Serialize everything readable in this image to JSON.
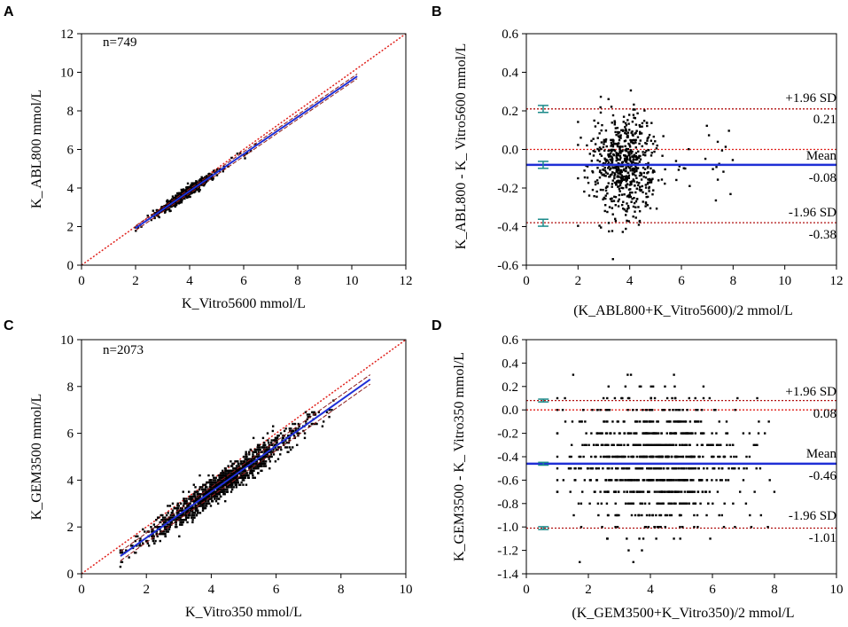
{
  "chart_data": [
    {
      "panel": "A",
      "type": "scatter",
      "xlabel": "K_Vitro5600 mmol/L",
      "ylabel": "K_ ABL800 mmol/L",
      "xlim": [
        0,
        12
      ],
      "ylim": [
        0,
        12
      ],
      "xticks": [
        "0",
        "2",
        "4",
        "6",
        "8",
        "10",
        "12"
      ],
      "yticks": [
        "0",
        "2",
        "4",
        "6",
        "8",
        "10",
        "12"
      ],
      "annotation": "n=749",
      "points_summary": {
        "n": 749,
        "x_range": [
          2.0,
          6.5
        ],
        "x_center": 3.8
      },
      "identity_line": {
        "from": [
          0,
          0
        ],
        "to": [
          12,
          12
        ],
        "color": "#e0201b"
      },
      "regression": {
        "slope": 0.96,
        "intercept": 0.0,
        "x_range": [
          2.0,
          10.2
        ],
        "color": "#1f2fd6"
      },
      "ci_offset": 0.12
    },
    {
      "panel": "B",
      "type": "scatter",
      "xlabel": "(K_ABL800+K_Vitro5600)/2 mmol/L",
      "ylabel": "K_ABL800 - K_ Vitro5600 mmol/L",
      "xlim": [
        0,
        12
      ],
      "ylim": [
        -0.6,
        0.6
      ],
      "xticks": [
        "0",
        "2",
        "4",
        "6",
        "8",
        "10",
        "12"
      ],
      "yticks": [
        "-0.6",
        "-0.4",
        "-0.2",
        "0.0",
        "0.2",
        "0.4",
        "0.6"
      ],
      "mean": -0.08,
      "upper_loa": 0.21,
      "lower_loa": -0.38,
      "labels": {
        "upper": "+1.96 SD",
        "upper_value": "0.21",
        "mean": "Mean",
        "mean_value": "-0.08",
        "lower": "-1.96 SD",
        "lower_value": "-0.38"
      },
      "points_summary": {
        "x_range": [
          2.0,
          8.0
        ],
        "y_range": [
          -0.58,
          0.44
        ]
      }
    },
    {
      "panel": "C",
      "type": "scatter",
      "xlabel": "K_Vitro350 mmol/L",
      "ylabel": "K_GEM3500 mmol/L",
      "xlim": [
        0,
        10
      ],
      "ylim": [
        0,
        10
      ],
      "xticks": [
        "0",
        "2",
        "4",
        "6",
        "8",
        "10"
      ],
      "yticks": [
        "0",
        "2",
        "4",
        "6",
        "8",
        "10"
      ],
      "annotation": "n=2073",
      "points_summary": {
        "n": 2073,
        "x_range": [
          1.2,
          8.9
        ],
        "x_center": 4.3
      },
      "identity_line": {
        "from": [
          0,
          0
        ],
        "to": [
          10,
          10
        ],
        "color": "#e0201b"
      },
      "regression": {
        "slope": 0.98,
        "intercept": -0.42,
        "x_range": [
          1.2,
          8.9
        ],
        "color": "#1f2fd6"
      },
      "ci_offset": 0.2
    },
    {
      "panel": "D",
      "type": "scatter",
      "xlabel": "(K_GEM3500+K_Vitro350)/2 mmol/L",
      "ylabel": "K_GEM3500 - K_ Vitro350 mmol/L",
      "xlim": [
        0,
        10
      ],
      "ylim": [
        -1.4,
        0.6
      ],
      "xticks": [
        "0",
        "2",
        "4",
        "6",
        "8",
        "10"
      ],
      "yticks": [
        "-1.4",
        "-1.2",
        "-1.0",
        "-0.8",
        "-0.6",
        "-0.4",
        "-0.2",
        "0.0",
        "0.2",
        "0.4",
        "0.6"
      ],
      "mean": -0.46,
      "upper_loa": 0.08,
      "lower_loa": -1.01,
      "labels": {
        "upper": "+1.96 SD",
        "upper_value": "0.08",
        "mean": "Mean",
        "mean_value": "-0.46",
        "lower": "-1.96 SD",
        "lower_value": "-1.01"
      },
      "points_summary": {
        "x_range": [
          1.0,
          9.1
        ],
        "y_range": [
          -1.3,
          0.4
        ],
        "y_step": 0.1
      }
    }
  ]
}
